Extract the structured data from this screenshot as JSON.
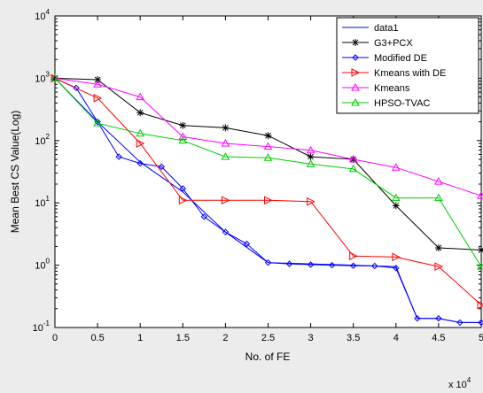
{
  "chart_data": {
    "type": "line",
    "ylabel": "Mean Best CS Value(Log)",
    "xlabel": "No. of FE",
    "x_multiplier_base": "x 10",
    "x_multiplier_exp": "4",
    "xlim": [
      0,
      50000
    ],
    "ylim": [
      0.1,
      10000
    ],
    "yscale": "log",
    "x_ticks": [
      0,
      5000,
      10000,
      15000,
      20000,
      25000,
      30000,
      35000,
      40000,
      45000,
      50000
    ],
    "x_tick_labels": [
      "0",
      "0.5",
      "1",
      "1.5",
      "2",
      "2.5",
      "3",
      "3.5",
      "4",
      "4.5",
      "5"
    ],
    "y_ticks": [
      0.1,
      1,
      10,
      100,
      1000,
      10000
    ],
    "y_tick_exps": [
      "-1",
      "0",
      "1",
      "2",
      "3",
      "4"
    ],
    "y_tick_base": "10",
    "legend_position": "top-right",
    "grid": false,
    "series": [
      {
        "name": "data1",
        "color": "#0000ff",
        "marker": "none",
        "x": [
          0,
          5000,
          10000,
          15000,
          20000,
          25000,
          30000,
          35000,
          40000,
          42500,
          45000,
          47500,
          50000
        ],
        "y": [
          1000,
          200,
          45,
          15,
          3.4,
          1.1,
          1.05,
          1.0,
          0.95,
          0.14,
          0.14,
          0.12,
          0.12
        ]
      },
      {
        "name": "G3+PCX",
        "color": "#000000",
        "marker": "star",
        "x": [
          0,
          5000,
          10000,
          15000,
          20000,
          25000,
          30000,
          35000,
          40000,
          45000,
          50000
        ],
        "y": [
          1000,
          950,
          280,
          175,
          160,
          120,
          55,
          50,
          9,
          1.9,
          1.75
        ]
      },
      {
        "name": "Modified DE",
        "color": "#0000ff",
        "marker": "diamond",
        "x": [
          0,
          2500,
          5000,
          7500,
          10000,
          12500,
          15000,
          17500,
          20000,
          22500,
          25000,
          27500,
          30000,
          32500,
          35000,
          37500,
          40000,
          42500,
          45000,
          47500,
          50000
        ],
        "y": [
          1000,
          700,
          200,
          55,
          43,
          38,
          17,
          6,
          3.4,
          2.2,
          1.1,
          1.05,
          1.02,
          1.0,
          0.98,
          0.97,
          0.9,
          0.14,
          0.14,
          0.12,
          0.12
        ]
      },
      {
        "name": "Kmeans with DE",
        "color": "#ff0000",
        "marker": "triangle-right",
        "x": [
          0,
          5000,
          10000,
          15000,
          20000,
          25000,
          30000,
          35000,
          40000,
          45000,
          50000
        ],
        "y": [
          1000,
          480,
          90,
          11,
          11,
          11,
          10.5,
          1.4,
          1.35,
          0.95,
          0.23
        ]
      },
      {
        "name": "Kmeans",
        "color": "#ff00ff",
        "marker": "triangle-up",
        "x": [
          0,
          5000,
          10000,
          15000,
          20000,
          25000,
          30000,
          35000,
          40000,
          45000,
          50000
        ],
        "y": [
          1000,
          800,
          500,
          115,
          90,
          80,
          70,
          50,
          37,
          22,
          13
        ]
      },
      {
        "name": "HPSO-TVAC",
        "color": "#00cc00",
        "marker": "triangle-up",
        "x": [
          0,
          5000,
          10000,
          15000,
          20000,
          25000,
          30000,
          35000,
          40000,
          45000,
          50000
        ],
        "y": [
          1000,
          190,
          130,
          100,
          55,
          53,
          42,
          35,
          12,
          12,
          0.95
        ]
      }
    ]
  }
}
